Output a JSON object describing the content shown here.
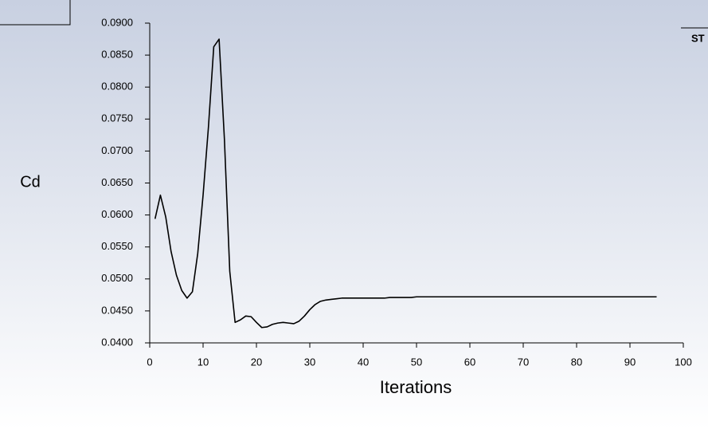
{
  "chart_data": {
    "type": "line",
    "y_label": "Cd",
    "x_label": "Iterations",
    "annotation": "ST",
    "color": "#000000",
    "x": [
      1,
      2,
      3,
      4,
      5,
      6,
      7,
      8,
      9,
      10,
      11,
      12,
      13,
      14,
      15,
      16,
      17,
      18,
      19,
      20,
      21,
      22,
      23,
      24,
      25,
      26,
      27,
      28,
      29,
      30,
      31,
      32,
      33,
      34,
      35,
      36,
      37,
      38,
      39,
      40,
      41,
      42,
      43,
      44,
      45,
      46,
      47,
      48,
      49,
      50,
      51,
      52,
      53,
      54,
      55,
      56,
      57,
      58,
      59,
      60,
      61,
      62,
      63,
      64,
      65,
      66,
      67,
      68,
      69,
      70,
      71,
      72,
      73,
      74,
      75,
      76,
      77,
      78,
      79,
      80,
      81,
      82,
      83,
      84,
      85,
      86,
      87,
      88,
      89,
      90,
      91,
      92,
      93,
      94,
      95
    ],
    "values": [
      0.0594,
      0.0631,
      0.0597,
      0.0543,
      0.0506,
      0.0482,
      0.047,
      0.048,
      0.054,
      0.0631,
      0.0737,
      0.0863,
      0.0875,
      0.0718,
      0.0512,
      0.0432,
      0.0436,
      0.0442,
      0.0441,
      0.0432,
      0.0424,
      0.0425,
      0.0429,
      0.0431,
      0.0432,
      0.0431,
      0.043,
      0.0434,
      0.0442,
      0.0452,
      0.046,
      0.0465,
      0.0467,
      0.0468,
      0.0469,
      0.047,
      0.047,
      0.047,
      0.047,
      0.047,
      0.047,
      0.047,
      0.047,
      0.047,
      0.0471,
      0.0471,
      0.0471,
      0.0471,
      0.0471,
      0.0472,
      0.0472,
      0.0472,
      0.0472,
      0.0472,
      0.0472,
      0.0472,
      0.0472,
      0.0472,
      0.0472,
      0.0472,
      0.0472,
      0.0472,
      0.0472,
      0.0472,
      0.0472,
      0.0472,
      0.0472,
      0.0472,
      0.0472,
      0.0472,
      0.0472,
      0.0472,
      0.0472,
      0.0472,
      0.0472,
      0.0472,
      0.0472,
      0.0472,
      0.0472,
      0.0472,
      0.0472,
      0.0472,
      0.0472,
      0.0472,
      0.0472,
      0.0472,
      0.0472,
      0.0472,
      0.0472,
      0.0472,
      0.0472,
      0.0472,
      0.0472,
      0.0472,
      0.0472
    ],
    "xlim": [
      0,
      100
    ],
    "xticks": [
      0,
      10,
      20,
      30,
      40,
      50,
      60,
      70,
      80,
      90,
      100
    ],
    "ylim": [
      0.04,
      0.09
    ],
    "yticks": [
      {
        "value": 0.04,
        "label": "0.0400"
      },
      {
        "value": 0.045,
        "label": "0.0450"
      },
      {
        "value": 0.05,
        "label": "0.0500"
      },
      {
        "value": 0.055,
        "label": "0.0550"
      },
      {
        "value": 0.06,
        "label": "0.0600"
      },
      {
        "value": 0.065,
        "label": "0.0650"
      },
      {
        "value": 0.07,
        "label": "0.0700"
      },
      {
        "value": 0.075,
        "label": "0.0750"
      },
      {
        "value": 0.08,
        "label": "0.0800"
      },
      {
        "value": 0.085,
        "label": "0.0850"
      },
      {
        "value": 0.09,
        "label": "0.0900"
      }
    ]
  }
}
